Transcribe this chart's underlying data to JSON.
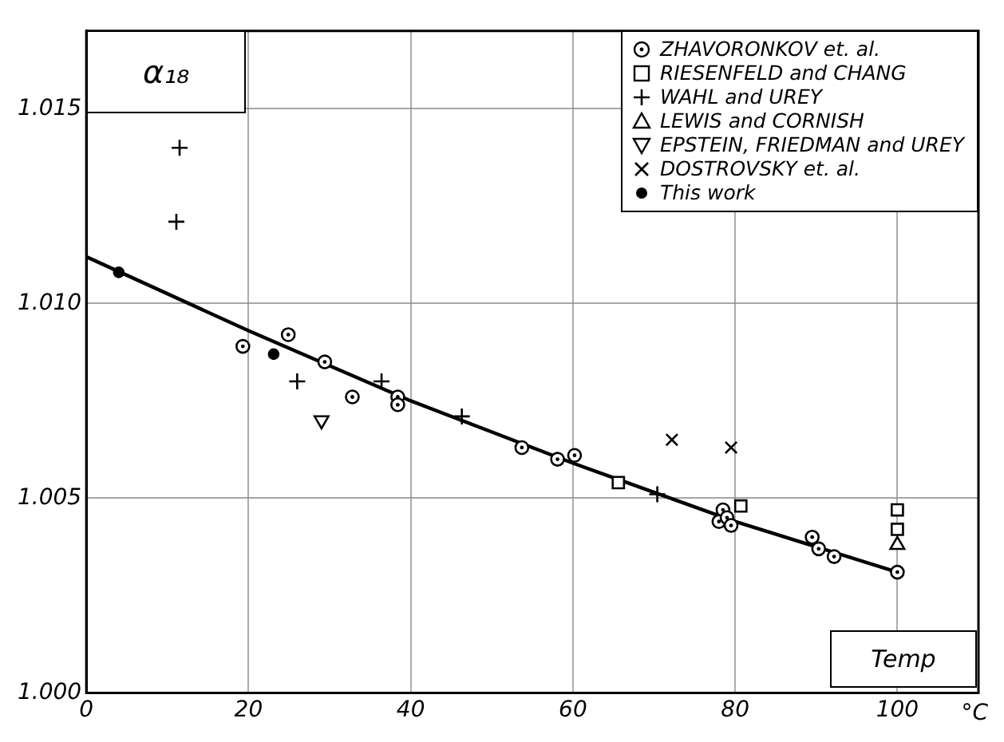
{
  "chart_data": {
    "type": "scatter",
    "ylabel": "α₁₈",
    "xlabel": "Temp",
    "xlim": [
      0,
      110
    ],
    "ylim": [
      1.0,
      1.017
    ],
    "xticks": [
      0,
      20,
      40,
      60,
      80,
      100
    ],
    "annotations": [
      "°C"
    ],
    "yticks": [
      {
        "value": 1.0,
        "label": "1.000"
      },
      1.005,
      {
        "value": 1.01,
        "label": "1.010"
      },
      1.015
    ],
    "grid": true,
    "legend": "top right",
    "series": [
      {
        "name": "ZHAVORONKOV et. al.",
        "color": "#000000",
        "marker": "circle_dot",
        "x": [
          19.3,
          24.9,
          29.4,
          32.8,
          38.4,
          38.4,
          53.7,
          58.1,
          60.2,
          78.0,
          78.5,
          79.0,
          79.5,
          89.5,
          90.3,
          92.2,
          100
        ],
        "values": [
          1.0089,
          1.0092,
          1.0085,
          1.0076,
          1.0076,
          1.0074,
          1.0063,
          1.006,
          1.0061,
          1.0044,
          1.0047,
          1.0045,
          1.0043,
          1.004,
          1.0037,
          1.0035,
          1.0031
        ]
      },
      {
        "name": "RIESENFELD and CHANG",
        "color": "#000000",
        "marker": "square",
        "x": [
          65.6,
          80.7,
          100,
          100
        ],
        "values": [
          1.0054,
          1.0048,
          1.0047,
          1.0042
        ]
      },
      {
        "name": "WAHL and UREY",
        "color": "#000000",
        "marker": "cross",
        "x": [
          11.5,
          11.1,
          26.0,
          36.4,
          46.3,
          70.4
        ],
        "values": [
          1.014,
          1.0121,
          1.008,
          1.008,
          1.0071,
          1.0051
        ]
      },
      {
        "name": "LEWIS and CORNISH",
        "color": "#000000",
        "marker": "triangle",
        "x": [
          100
        ],
        "values": [
          1.0038
        ]
      },
      {
        "name": "EPSTEIN, FRIEDMAN and UREY",
        "color": "#000000",
        "marker": "triangle_down",
        "x": [
          29
        ],
        "values": [
          1.007
        ]
      },
      {
        "name": "DOSTROVSKY et. al.",
        "color": "#000000",
        "marker": "x",
        "x": [
          72.2,
          79.5
        ],
        "values": [
          1.0065,
          1.0063
        ]
      },
      {
        "name": "This work",
        "color": "#000000",
        "marker": "circle",
        "x": [
          4.0,
          23.1
        ],
        "values": [
          1.0108,
          1.0087
        ]
      },
      {
        "type": "line",
        "color": "#000000",
        "marker": "none",
        "line_style": "solid",
        "x": [
          0,
          20,
          40,
          60,
          80,
          100
        ],
        "values": [
          1.0112,
          1.0093,
          1.0075,
          1.0059,
          1.0044,
          1.0031
        ]
      }
    ]
  }
}
